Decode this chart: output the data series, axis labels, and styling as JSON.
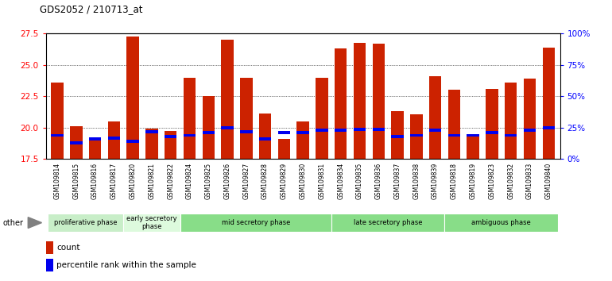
{
  "title": "GDS2052 / 210713_at",
  "samples": [
    "GSM109814",
    "GSM109815",
    "GSM109816",
    "GSM109817",
    "GSM109820",
    "GSM109821",
    "GSM109822",
    "GSM109824",
    "GSM109825",
    "GSM109826",
    "GSM109827",
    "GSM109828",
    "GSM109829",
    "GSM109830",
    "GSM109831",
    "GSM109834",
    "GSM109835",
    "GSM109836",
    "GSM109837",
    "GSM109838",
    "GSM109839",
    "GSM109818",
    "GSM109819",
    "GSM109823",
    "GSM109832",
    "GSM109833",
    "GSM109840"
  ],
  "count_values": [
    23.6,
    20.1,
    19.0,
    20.5,
    27.3,
    19.9,
    19.7,
    24.0,
    22.5,
    27.0,
    24.0,
    21.1,
    19.1,
    20.5,
    24.0,
    26.3,
    26.8,
    26.7,
    21.3,
    21.05,
    24.1,
    23.0,
    19.4,
    23.1,
    23.6,
    23.9,
    26.4
  ],
  "percentile_values": [
    19.3,
    18.7,
    19.0,
    19.1,
    18.8,
    19.6,
    19.2,
    19.3,
    19.5,
    19.9,
    19.6,
    19.0,
    19.5,
    19.5,
    19.7,
    19.7,
    19.8,
    19.8,
    19.2,
    19.3,
    19.7,
    19.3,
    19.3,
    19.5,
    19.3,
    19.7,
    19.9
  ],
  "phase_defs": [
    {
      "name": "proliferative phase",
      "start": 0,
      "end": 3,
      "color": "#c8eec8"
    },
    {
      "name": "early secretory\nphase",
      "start": 4,
      "end": 6,
      "color": "#ddfadd"
    },
    {
      "name": "mid secretory phase",
      "start": 7,
      "end": 14,
      "color": "#88dd88"
    },
    {
      "name": "late secretory phase",
      "start": 15,
      "end": 20,
      "color": "#88dd88"
    },
    {
      "name": "ambiguous phase",
      "start": 21,
      "end": 26,
      "color": "#88dd88"
    }
  ],
  "y_min": 17.5,
  "y_max": 27.5,
  "y_ticks": [
    17.5,
    20.0,
    22.5,
    25.0,
    27.5
  ],
  "pct_ticks": [
    0,
    25,
    50,
    75,
    100
  ],
  "bar_color_red": "#cc2200",
  "bar_color_blue": "#0000ee",
  "plot_bg": "#ffffff",
  "label_area_bg": "#d0d0d0"
}
